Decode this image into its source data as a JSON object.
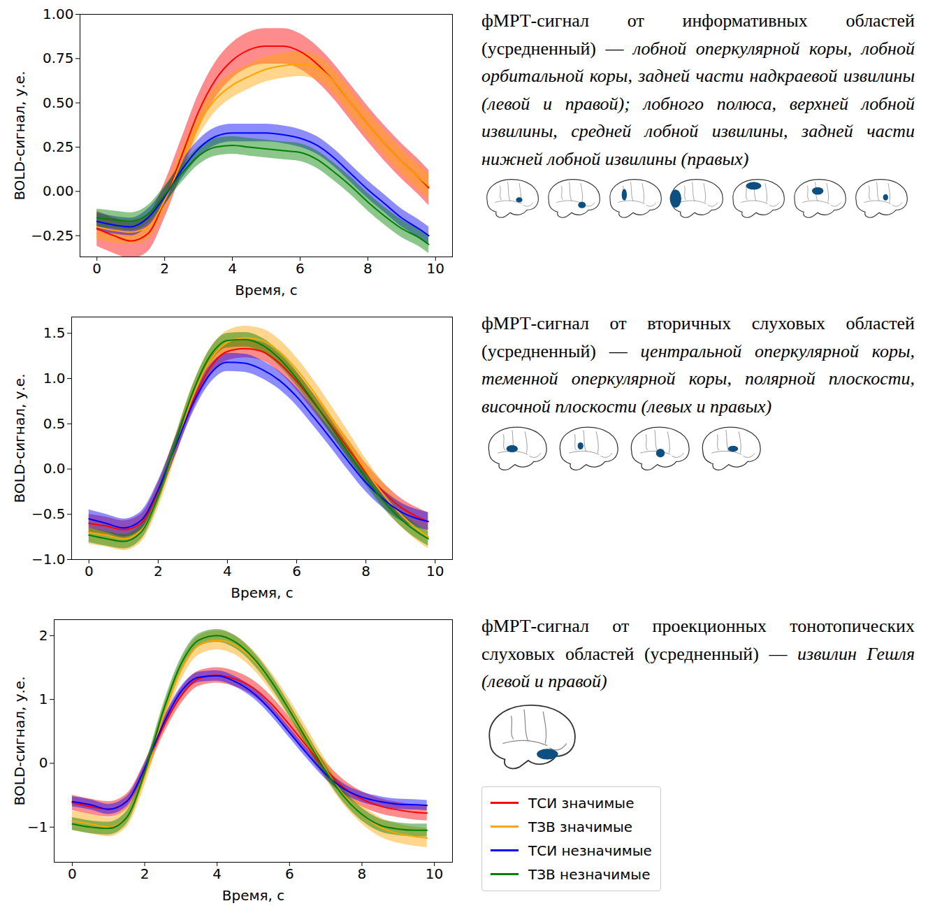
{
  "chart_data": [
    {
      "type": "line",
      "title": "фМРТ-сигнал от информативных областей (усредненный) —",
      "subtitle": "лобной оперкулярной коры, лобной орбитальной коры, задней части надкраевой извилины (левой и правой); лобного полюса, верхней лобной извилины, средней лобной извилины, задней части нижней лобной извилины (правых)",
      "xlabel": "Время, с",
      "ylabel": "BOLD-сигнал, у.е.",
      "xlim": [
        -0.5,
        10.5
      ],
      "xticks": [
        0,
        2,
        4,
        6,
        8,
        10
      ],
      "ylim": [
        -0.37,
        1.0
      ],
      "yticks": [
        {
          "value": -0.25,
          "label": "−0.25"
        },
        {
          "value": 0,
          "label": "0.00"
        },
        {
          "value": 0.25,
          "label": "0.25"
        },
        {
          "value": 0.5,
          "label": "0.50"
        },
        {
          "value": 0.75,
          "label": "0.75"
        },
        {
          "value": 1.0,
          "label": "1.00"
        }
      ],
      "grid": false,
      "x": [
        0,
        0.5,
        1,
        1.5,
        2,
        2.5,
        3,
        3.5,
        4,
        4.5,
        5,
        5.5,
        6,
        6.5,
        7,
        7.5,
        8,
        8.5,
        9,
        9.5,
        9.8
      ],
      "series": [
        {
          "name": "ТСИ значимые",
          "color": "red",
          "values": [
            -0.21,
            -0.25,
            -0.28,
            -0.24,
            -0.05,
            0.2,
            0.45,
            0.63,
            0.74,
            0.8,
            0.82,
            0.82,
            0.79,
            0.72,
            0.62,
            0.5,
            0.38,
            0.27,
            0.17,
            0.08,
            0.02
          ],
          "lower": [
            -0.31,
            -0.35,
            -0.38,
            -0.34,
            -0.15,
            0.1,
            0.35,
            0.53,
            0.64,
            0.7,
            0.72,
            0.72,
            0.69,
            0.62,
            0.52,
            0.4,
            0.28,
            0.17,
            0.07,
            -0.02,
            -0.08
          ],
          "upper": [
            -0.11,
            -0.15,
            -0.18,
            -0.14,
            0.05,
            0.3,
            0.55,
            0.73,
            0.84,
            0.9,
            0.92,
            0.92,
            0.89,
            0.82,
            0.72,
            0.6,
            0.48,
            0.37,
            0.27,
            0.18,
            0.12
          ]
        },
        {
          "name": "ТЗВ значимые",
          "color": "orange",
          "values": [
            -0.2,
            -0.22,
            -0.23,
            -0.2,
            -0.05,
            0.17,
            0.38,
            0.52,
            0.6,
            0.65,
            0.69,
            0.71,
            0.72,
            0.7,
            0.62,
            0.5,
            0.38,
            0.27,
            0.17,
            0.08,
            0.03
          ],
          "lower": [
            -0.27,
            -0.29,
            -0.3,
            -0.27,
            -0.12,
            0.1,
            0.31,
            0.45,
            0.53,
            0.58,
            0.62,
            0.64,
            0.65,
            0.63,
            0.55,
            0.43,
            0.31,
            0.2,
            0.1,
            0.01,
            -0.04
          ],
          "upper": [
            -0.13,
            -0.15,
            -0.16,
            -0.13,
            0.02,
            0.24,
            0.45,
            0.59,
            0.67,
            0.72,
            0.76,
            0.78,
            0.79,
            0.77,
            0.69,
            0.57,
            0.45,
            0.34,
            0.24,
            0.15,
            0.1
          ]
        },
        {
          "name": "ТСИ незначимые",
          "color": "blue",
          "values": [
            -0.17,
            -0.19,
            -0.2,
            -0.15,
            -0.03,
            0.12,
            0.24,
            0.31,
            0.33,
            0.33,
            0.33,
            0.32,
            0.3,
            0.26,
            0.19,
            0.1,
            0.01,
            -0.07,
            -0.15,
            -0.21,
            -0.25
          ],
          "lower": [
            -0.22,
            -0.24,
            -0.25,
            -0.2,
            -0.08,
            0.07,
            0.19,
            0.26,
            0.28,
            0.28,
            0.28,
            0.27,
            0.25,
            0.21,
            0.14,
            0.05,
            -0.04,
            -0.12,
            -0.2,
            -0.26,
            -0.3
          ],
          "upper": [
            -0.12,
            -0.14,
            -0.15,
            -0.1,
            0.02,
            0.17,
            0.29,
            0.36,
            0.38,
            0.38,
            0.38,
            0.37,
            0.35,
            0.31,
            0.24,
            0.15,
            0.06,
            -0.02,
            -0.1,
            -0.16,
            -0.2
          ]
        },
        {
          "name": "ТЗВ незначимые",
          "color": "green",
          "values": [
            -0.15,
            -0.16,
            -0.17,
            -0.13,
            -0.02,
            0.1,
            0.2,
            0.25,
            0.26,
            0.25,
            0.24,
            0.23,
            0.22,
            0.18,
            0.11,
            0.03,
            -0.06,
            -0.14,
            -0.21,
            -0.26,
            -0.3
          ],
          "lower": [
            -0.2,
            -0.21,
            -0.22,
            -0.18,
            -0.07,
            0.05,
            0.15,
            0.2,
            0.21,
            0.2,
            0.19,
            0.18,
            0.17,
            0.13,
            0.06,
            -0.02,
            -0.11,
            -0.19,
            -0.26,
            -0.31,
            -0.35
          ],
          "upper": [
            -0.1,
            -0.11,
            -0.12,
            -0.08,
            0.03,
            0.15,
            0.25,
            0.3,
            0.31,
            0.3,
            0.29,
            0.28,
            0.27,
            0.23,
            0.16,
            0.08,
            -0.01,
            -0.09,
            -0.16,
            -0.21,
            -0.25
          ]
        }
      ]
    },
    {
      "type": "line",
      "title": "фМРТ-сигнал от вторичных слуховых областей (усредненный) —",
      "subtitle": "центральной оперкулярной коры, теменной оперкулярной коры, полярной плоскости, височной плоскости (левых и правых)",
      "xlabel": "Время, с",
      "ylabel": "BOLD-сигнал, у.е.",
      "xlim": [
        -0.5,
        10.5
      ],
      "xticks": [
        0,
        2,
        4,
        6,
        8,
        10
      ],
      "ylim": [
        -1.0,
        1.68
      ],
      "yticks": [
        {
          "value": -1.0,
          "label": "−1.0"
        },
        {
          "value": -0.5,
          "label": "−0.5"
        },
        {
          "value": 0,
          "label": "0.0"
        },
        {
          "value": 0.5,
          "label": "0.5"
        },
        {
          "value": 1.0,
          "label": "1.0"
        },
        {
          "value": 1.5,
          "label": "1.5"
        }
      ],
      "grid": false,
      "x": [
        0,
        0.5,
        1,
        1.5,
        2,
        2.5,
        3,
        3.5,
        4,
        4.5,
        5,
        5.5,
        6,
        6.5,
        7,
        7.5,
        8,
        8.5,
        9,
        9.5,
        9.8
      ],
      "series": [
        {
          "name": "ТСИ значимые",
          "color": "red",
          "values": [
            -0.6,
            -0.63,
            -0.67,
            -0.6,
            -0.25,
            0.25,
            0.75,
            1.12,
            1.3,
            1.33,
            1.3,
            1.17,
            0.97,
            0.73,
            0.48,
            0.22,
            -0.04,
            -0.25,
            -0.42,
            -0.53,
            -0.58
          ],
          "lower": [
            -0.7,
            -0.73,
            -0.77,
            -0.7,
            -0.35,
            0.15,
            0.65,
            1.02,
            1.2,
            1.23,
            1.2,
            1.07,
            0.87,
            0.63,
            0.38,
            0.12,
            -0.14,
            -0.35,
            -0.52,
            -0.63,
            -0.68
          ],
          "upper": [
            -0.5,
            -0.53,
            -0.57,
            -0.5,
            -0.15,
            0.35,
            0.85,
            1.22,
            1.4,
            1.43,
            1.4,
            1.27,
            1.07,
            0.83,
            0.58,
            0.32,
            0.06,
            -0.15,
            -0.32,
            -0.43,
            -0.48
          ]
        },
        {
          "name": "ТЗВ значимые",
          "color": "orange",
          "values": [
            -0.7,
            -0.73,
            -0.77,
            -0.68,
            -0.3,
            0.25,
            0.8,
            1.2,
            1.4,
            1.45,
            1.42,
            1.3,
            1.1,
            0.85,
            0.57,
            0.28,
            -0.02,
            -0.28,
            -0.5,
            -0.67,
            -0.75
          ],
          "lower": [
            -0.83,
            -0.86,
            -0.9,
            -0.81,
            -0.43,
            0.12,
            0.67,
            1.07,
            1.27,
            1.32,
            1.29,
            1.17,
            0.97,
            0.72,
            0.44,
            0.15,
            -0.15,
            -0.41,
            -0.63,
            -0.8,
            -0.88
          ],
          "upper": [
            -0.57,
            -0.6,
            -0.64,
            -0.55,
            -0.17,
            0.38,
            0.93,
            1.33,
            1.53,
            1.58,
            1.55,
            1.43,
            1.23,
            0.98,
            0.7,
            0.41,
            0.11,
            -0.15,
            -0.37,
            -0.54,
            -0.62
          ]
        },
        {
          "name": "ТСИ незначимые",
          "color": "blue",
          "values": [
            -0.55,
            -0.6,
            -0.65,
            -0.57,
            -0.23,
            0.25,
            0.72,
            1.05,
            1.18,
            1.17,
            1.1,
            0.98,
            0.8,
            0.57,
            0.33,
            0.08,
            -0.15,
            -0.33,
            -0.47,
            -0.55,
            -0.58
          ],
          "lower": [
            -0.65,
            -0.7,
            -0.75,
            -0.67,
            -0.33,
            0.15,
            0.62,
            0.95,
            1.08,
            1.07,
            1.0,
            0.88,
            0.7,
            0.47,
            0.23,
            -0.02,
            -0.25,
            -0.43,
            -0.57,
            -0.65,
            -0.68
          ],
          "upper": [
            -0.45,
            -0.5,
            -0.55,
            -0.47,
            -0.13,
            0.35,
            0.82,
            1.15,
            1.28,
            1.27,
            1.2,
            1.08,
            0.9,
            0.67,
            0.43,
            0.18,
            -0.05,
            -0.23,
            -0.37,
            -0.45,
            -0.48
          ]
        },
        {
          "name": "ТЗВ незначимые",
          "color": "green",
          "values": [
            -0.73,
            -0.77,
            -0.8,
            -0.7,
            -0.3,
            0.28,
            0.85,
            1.25,
            1.42,
            1.43,
            1.37,
            1.22,
            1.0,
            0.74,
            0.46,
            0.18,
            -0.1,
            -0.35,
            -0.55,
            -0.7,
            -0.77
          ],
          "lower": [
            -0.81,
            -0.85,
            -0.88,
            -0.78,
            -0.38,
            0.2,
            0.77,
            1.17,
            1.34,
            1.35,
            1.29,
            1.14,
            0.92,
            0.66,
            0.38,
            0.1,
            -0.18,
            -0.43,
            -0.63,
            -0.78,
            -0.85
          ],
          "upper": [
            -0.65,
            -0.69,
            -0.72,
            -0.62,
            -0.22,
            0.36,
            0.93,
            1.33,
            1.5,
            1.51,
            1.45,
            1.3,
            1.08,
            0.82,
            0.54,
            0.26,
            -0.02,
            -0.27,
            -0.47,
            -0.62,
            -0.69
          ]
        }
      ]
    },
    {
      "type": "line",
      "title": "фМРТ-сигнал от проекционных тонотопических слуховых областей (усредненный) —",
      "subtitle": "извилин Гешля (левой и правой)",
      "xlabel": "Время, с",
      "ylabel": "BOLD-сигнал, у.е.",
      "xlim": [
        -0.5,
        10.5
      ],
      "xticks": [
        0,
        2,
        4,
        6,
        8,
        10
      ],
      "ylim": [
        -1.55,
        2.25
      ],
      "yticks": [
        {
          "value": -1,
          "label": "−1"
        },
        0,
        1,
        2
      ],
      "grid": false,
      "legend": "right",
      "x": [
        0,
        0.5,
        1,
        1.5,
        2,
        2.5,
        3,
        3.5,
        4,
        4.5,
        5,
        5.5,
        6,
        6.5,
        7,
        7.5,
        8,
        8.5,
        9,
        9.5,
        9.8
      ],
      "series": [
        {
          "name": "ТСИ значимые",
          "color": "red",
          "values": [
            -0.62,
            -0.68,
            -0.72,
            -0.6,
            -0.1,
            0.55,
            1.05,
            1.33,
            1.38,
            1.32,
            1.18,
            0.93,
            0.6,
            0.25,
            -0.1,
            -0.38,
            -0.56,
            -0.67,
            -0.73,
            -0.77,
            -0.78
          ],
          "lower": [
            -0.74,
            -0.8,
            -0.84,
            -0.72,
            -0.22,
            0.43,
            0.93,
            1.21,
            1.26,
            1.2,
            1.06,
            0.81,
            0.48,
            0.13,
            -0.22,
            -0.5,
            -0.68,
            -0.79,
            -0.85,
            -0.89,
            -0.9
          ],
          "upper": [
            -0.5,
            -0.56,
            -0.6,
            -0.48,
            0.02,
            0.67,
            1.17,
            1.45,
            1.5,
            1.44,
            1.3,
            1.05,
            0.72,
            0.37,
            0.02,
            -0.26,
            -0.44,
            -0.55,
            -0.61,
            -0.65,
            -0.66
          ]
        },
        {
          "name": "ТЗВ значимые",
          "color": "orange",
          "values": [
            -0.9,
            -0.95,
            -1.0,
            -0.85,
            -0.2,
            0.7,
            1.45,
            1.85,
            1.93,
            1.85,
            1.62,
            1.27,
            0.85,
            0.38,
            -0.1,
            -0.5,
            -0.8,
            -1.0,
            -1.1,
            -1.15,
            -1.17
          ],
          "lower": [
            -1.05,
            -1.1,
            -1.15,
            -1.0,
            -0.35,
            0.55,
            1.3,
            1.7,
            1.78,
            1.7,
            1.47,
            1.12,
            0.7,
            0.23,
            -0.25,
            -0.65,
            -0.95,
            -1.15,
            -1.25,
            -1.3,
            -1.32
          ],
          "upper": [
            -0.75,
            -0.8,
            -0.85,
            -0.7,
            -0.05,
            0.85,
            1.6,
            2.0,
            2.08,
            2.0,
            1.77,
            1.42,
            1.0,
            0.53,
            0.05,
            -0.35,
            -0.65,
            -0.85,
            -0.95,
            -1.0,
            -1.02
          ]
        },
        {
          "name": "ТСИ незначимые",
          "color": "blue",
          "values": [
            -0.6,
            -0.65,
            -0.72,
            -0.6,
            -0.08,
            0.6,
            1.12,
            1.35,
            1.37,
            1.28,
            1.1,
            0.82,
            0.48,
            0.14,
            -0.17,
            -0.4,
            -0.53,
            -0.6,
            -0.64,
            -0.65,
            -0.66
          ],
          "lower": [
            -0.68,
            -0.73,
            -0.8,
            -0.68,
            -0.16,
            0.52,
            1.04,
            1.27,
            1.29,
            1.2,
            1.02,
            0.74,
            0.4,
            0.06,
            -0.25,
            -0.48,
            -0.61,
            -0.68,
            -0.72,
            -0.73,
            -0.74
          ],
          "upper": [
            -0.52,
            -0.57,
            -0.64,
            -0.52,
            0.0,
            0.68,
            1.2,
            1.43,
            1.45,
            1.36,
            1.18,
            0.9,
            0.56,
            0.22,
            -0.09,
            -0.32,
            -0.45,
            -0.52,
            -0.56,
            -0.57,
            -0.58
          ]
        },
        {
          "name": "ТЗВ незначимые",
          "color": "green",
          "values": [
            -0.95,
            -1.0,
            -1.02,
            -0.85,
            -0.15,
            0.8,
            1.55,
            1.93,
            2.0,
            1.9,
            1.65,
            1.28,
            0.83,
            0.35,
            -0.12,
            -0.52,
            -0.8,
            -0.97,
            -1.03,
            -1.05,
            -1.05
          ],
          "lower": [
            -1.05,
            -1.1,
            -1.12,
            -0.95,
            -0.25,
            0.7,
            1.45,
            1.83,
            1.9,
            1.8,
            1.55,
            1.18,
            0.73,
            0.25,
            -0.22,
            -0.62,
            -0.9,
            -1.07,
            -1.13,
            -1.15,
            -1.15
          ],
          "upper": [
            -0.85,
            -0.9,
            -0.92,
            -0.75,
            -0.05,
            0.9,
            1.65,
            2.03,
            2.1,
            2.0,
            1.75,
            1.38,
            0.93,
            0.45,
            -0.02,
            -0.42,
            -0.7,
            -0.87,
            -0.93,
            -0.95,
            -0.95
          ]
        }
      ]
    }
  ]
}
